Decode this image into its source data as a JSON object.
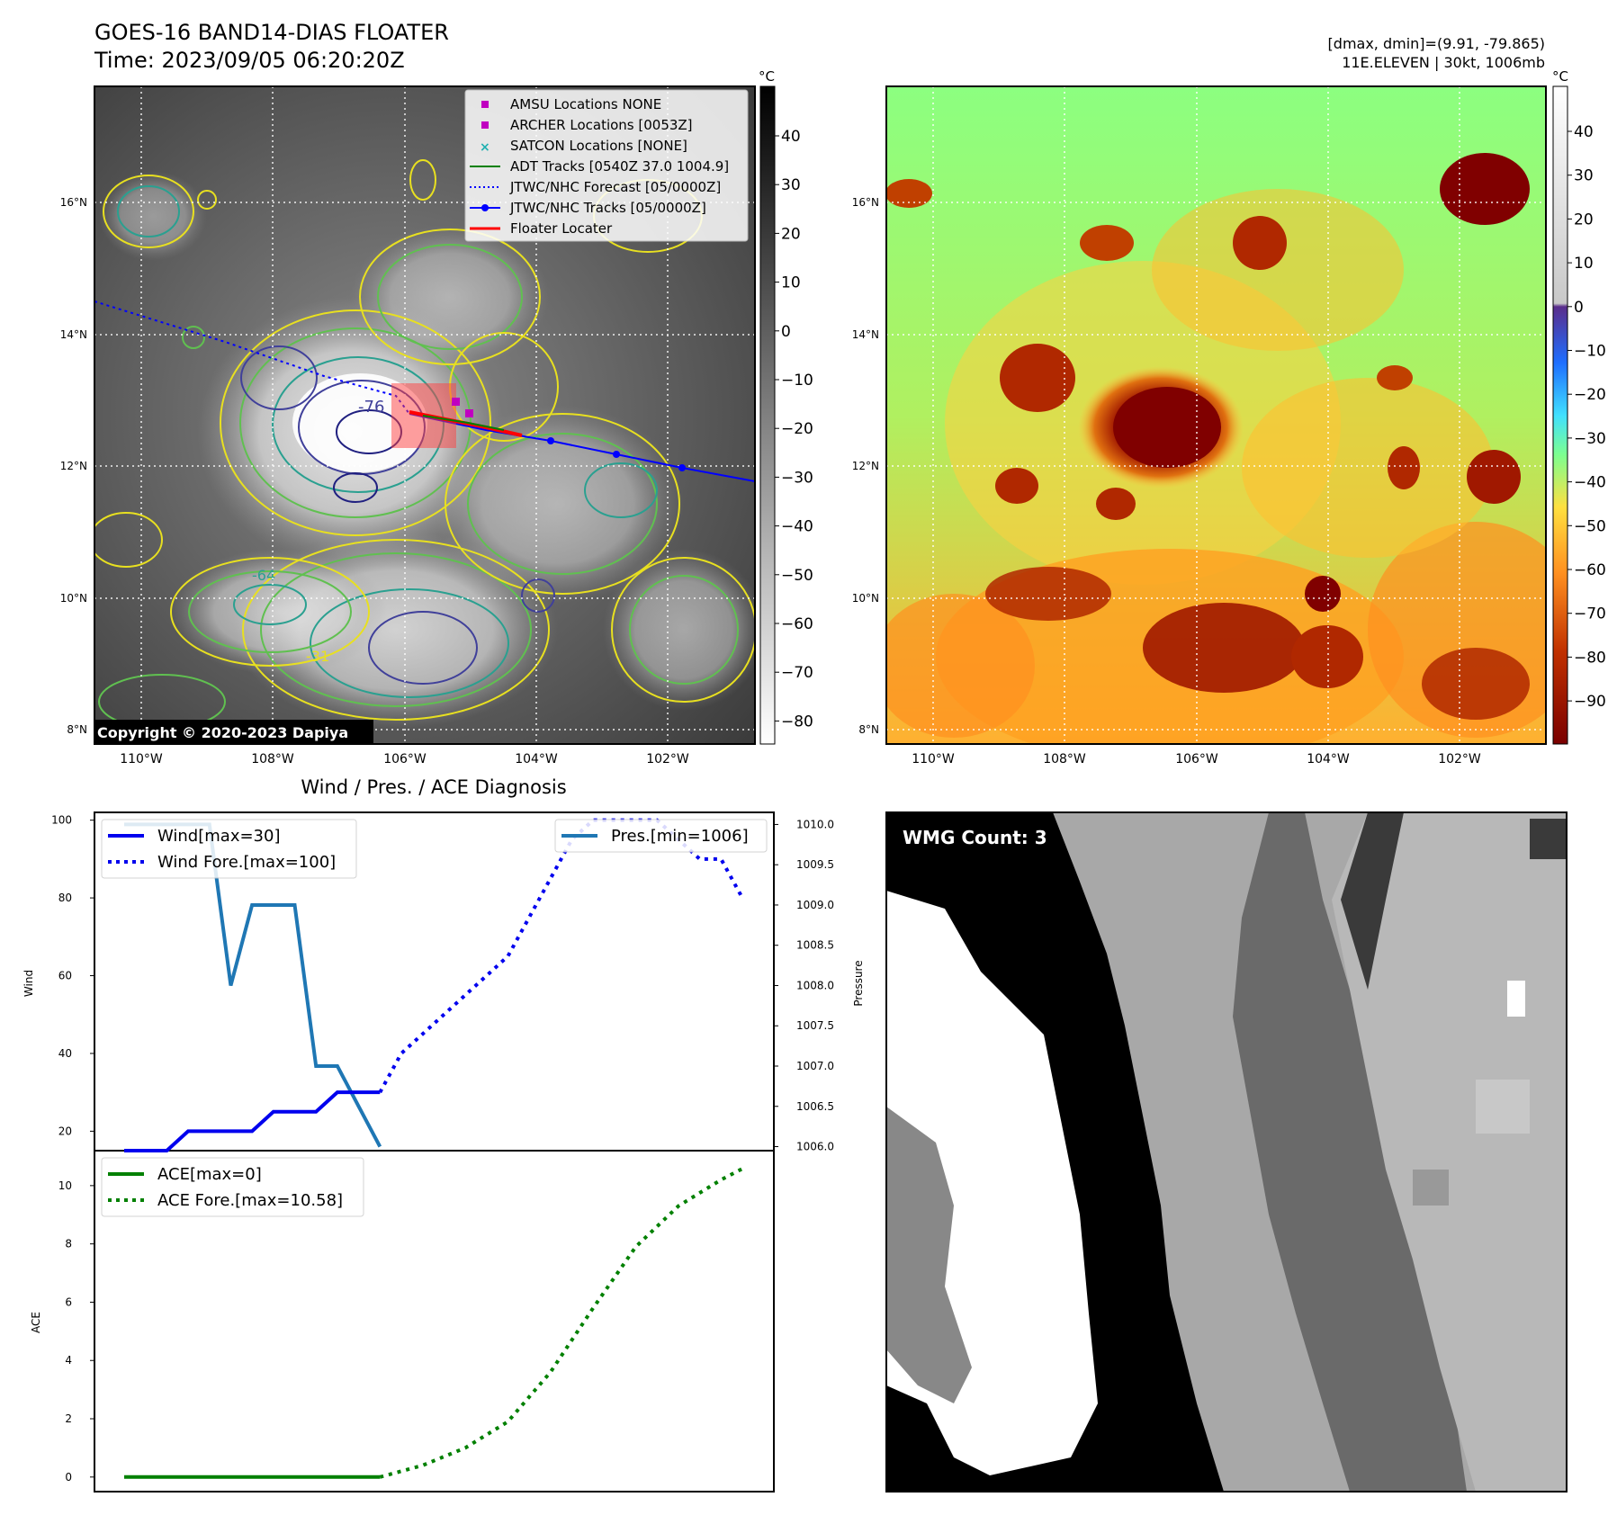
{
  "header": {
    "title": "GOES-16 BAND14-DIAS FLOATER",
    "time": "Time: 2023/09/05 06:20:20Z",
    "stats": "[dmax, dmin]=(9.91, -79.865)",
    "storm": "11E.ELEVEN | 30kt, 1006mb"
  },
  "maps": {
    "lat_labels": [
      "16°N",
      "14°N",
      "12°N",
      "10°N",
      "8°N"
    ],
    "lon_labels": [
      "110°W",
      "108°W",
      "106°W",
      "104°W",
      "102°W"
    ],
    "copyright": "Copyright © 2020-2023 Dapiya",
    "contour_labels": [
      "-76",
      "-64",
      "-31"
    ],
    "gray_colorbar": {
      "unit": "°C",
      "ticks": [
        "40",
        "30",
        "20",
        "10",
        "0",
        "−10",
        "−20",
        "−30",
        "−40",
        "−50",
        "−60",
        "−70",
        "−80"
      ]
    },
    "color_colorbar": {
      "unit": "°C",
      "ticks": [
        "40",
        "30",
        "20",
        "10",
        "0",
        "−10",
        "−20",
        "−30",
        "−40",
        "−50",
        "−60",
        "−70",
        "−80",
        "−90"
      ]
    },
    "legend": [
      {
        "label": "AMSU Locations NONE",
        "marker": "square",
        "color": "#c000c0"
      },
      {
        "label": "ARCHER Locations [0053Z]",
        "marker": "square",
        "color": "#c000c0"
      },
      {
        "label": "SATCON Locations [NONE]",
        "marker": "x",
        "color": "#20b0b0"
      },
      {
        "label": "ADT Tracks [0540Z 37.0 1004.9]",
        "marker": "line",
        "color": "#008000"
      },
      {
        "label": "JTWC/NHC Forecast [05/0000Z]",
        "marker": "dotted",
        "color": "#0000ff"
      },
      {
        "label": "JTWC/NHC Tracks [05/0000Z]",
        "marker": "line-dot",
        "color": "#0000ff"
      },
      {
        "label": "Floater Locater",
        "marker": "line",
        "color": "#ff0000"
      }
    ]
  },
  "diagnosis": {
    "title": "Wind / Pres. / ACE Diagnosis",
    "wind_ylabel": "Wind",
    "pressure_ylabel": "Pressure",
    "ace_ylabel": "ACE",
    "legend_wind": "Wind[max=30]",
    "legend_wind_fore": "Wind Fore.[max=100]",
    "legend_pres": "Pres.[min=1006]",
    "legend_ace": "ACE[max=0]",
    "legend_ace_fore": "ACE Fore.[max=10.58]"
  },
  "wmg": {
    "label": "WMG Count: 3"
  },
  "chart_data": [
    {
      "type": "line",
      "name": "wind",
      "ylim": [
        15,
        102
      ],
      "yticks": [
        20,
        40,
        60,
        80,
        100
      ],
      "xlim": [
        0,
        31
      ],
      "series": [
        {
          "name": "Wind[max=30]",
          "color": "#0000ee",
          "style": "solid",
          "x": [
            1,
            2,
            3,
            4,
            5,
            6,
            7,
            8,
            9,
            10,
            11,
            12,
            13
          ],
          "values": [
            15,
            15,
            15,
            20,
            20,
            20,
            20,
            25,
            25,
            25,
            30,
            30,
            30
          ]
        },
        {
          "name": "Wind Fore.[max=100]",
          "color": "#0000ee",
          "style": "dotted",
          "x": [
            13,
            14,
            15,
            16,
            17,
            18,
            19,
            20,
            21,
            22,
            23,
            24,
            25,
            26,
            27,
            28,
            29,
            30
          ],
          "values": [
            30,
            40,
            45,
            50,
            55,
            60,
            65,
            75,
            85,
            95,
            100,
            100,
            100,
            100,
            95,
            90,
            90,
            80
          ]
        }
      ]
    },
    {
      "type": "line",
      "name": "pressure",
      "ylim": [
        5.95,
        10.15
      ],
      "yticks": [
        "1010.0",
        "1009.5",
        "1009.0",
        "1008.5",
        "1008.0",
        "1007.5",
        "1007.0",
        "1006.5",
        "1006.0"
      ],
      "yticks_values": [
        10.0,
        9.5,
        9.0,
        8.5,
        8.0,
        7.5,
        7.0,
        6.5,
        6.0
      ],
      "series": [
        {
          "name": "Pres.[min=1006]",
          "color": "#1f77b4",
          "style": "solid",
          "x": [
            1,
            2,
            3,
            4,
            5,
            6,
            7,
            8,
            9,
            10,
            11,
            12,
            13
          ],
          "values": [
            10.0,
            10.0,
            10.0,
            10.0,
            10.0,
            8.0,
            9.0,
            9.0,
            9.0,
            7.0,
            7.0,
            6.5,
            6.0
          ]
        }
      ]
    },
    {
      "type": "line",
      "name": "ace",
      "ylim": [
        -0.5,
        11.2
      ],
      "yticks": [
        0,
        2,
        4,
        6,
        8,
        10
      ],
      "series": [
        {
          "name": "ACE[max=0]",
          "color": "#008000",
          "style": "solid",
          "x": [
            1,
            13
          ],
          "values": [
            0,
            0
          ]
        },
        {
          "name": "ACE Fore.[max=10.58]",
          "color": "#008000",
          "style": "dotted",
          "x": [
            13,
            15,
            17,
            19,
            21,
            23,
            25,
            27,
            29,
            30
          ],
          "values": [
            0,
            0.4,
            1.0,
            1.9,
            3.6,
            5.8,
            7.9,
            9.3,
            10.2,
            10.58
          ]
        }
      ]
    }
  ]
}
